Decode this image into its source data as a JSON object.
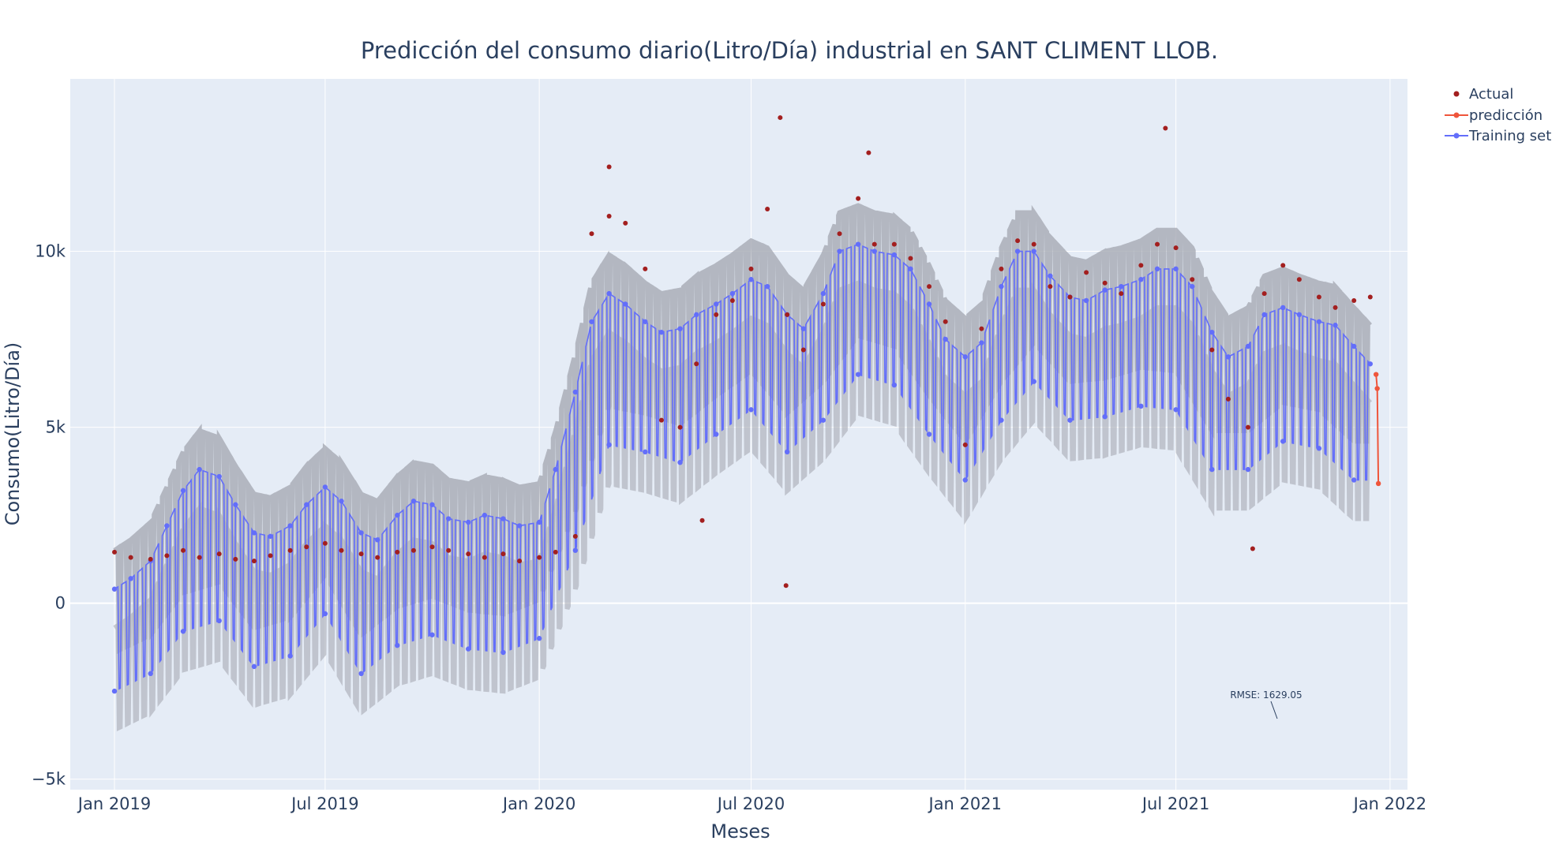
{
  "chart_data": {
    "type": "scatter",
    "title": "Predicción del consumo diario(Litro/Día) industrial en SANT CLIMENT LLOB.",
    "xlabel": "Meses",
    "ylabel": "Consumo(Litro/Día)",
    "x_range": [
      "2018-11-24",
      "2022-01-16"
    ],
    "y_range": [
      -5300,
      14900
    ],
    "x_ticks": [
      {
        "date": "2019-01-01",
        "label": "Jan 2019"
      },
      {
        "date": "2019-07-01",
        "label": "Jul 2019"
      },
      {
        "date": "2020-01-01",
        "label": "Jan 2020"
      },
      {
        "date": "2020-07-01",
        "label": "Jul 2020"
      },
      {
        "date": "2021-01-01",
        "label": "Jan 2021"
      },
      {
        "date": "2021-07-01",
        "label": "Jul 2021"
      },
      {
        "date": "2022-01-01",
        "label": "Jan 2022"
      }
    ],
    "y_ticks": [
      {
        "value": -5000,
        "label": "−5k"
      },
      {
        "value": 0,
        "label": "0"
      },
      {
        "value": 5000,
        "label": "5k"
      },
      {
        "value": 10000,
        "label": "10k"
      }
    ],
    "grid": true,
    "legend_position": "top-right",
    "series": [
      {
        "name": "Actual",
        "mode": "markers",
        "color": "#a31f1f",
        "points": [
          [
            "2019-01-01",
            1450
          ],
          [
            "2019-01-15",
            1300
          ],
          [
            "2019-02-01",
            1250
          ],
          [
            "2019-02-15",
            1350
          ],
          [
            "2019-03-01",
            1500
          ],
          [
            "2019-03-15",
            1300
          ],
          [
            "2019-04-01",
            1400
          ],
          [
            "2019-04-15",
            1250
          ],
          [
            "2019-05-01",
            1200
          ],
          [
            "2019-05-15",
            1350
          ],
          [
            "2019-06-01",
            1500
          ],
          [
            "2019-06-15",
            1600
          ],
          [
            "2019-07-01",
            1700
          ],
          [
            "2019-07-15",
            1500
          ],
          [
            "2019-08-01",
            1400
          ],
          [
            "2019-08-15",
            1300
          ],
          [
            "2019-09-01",
            1450
          ],
          [
            "2019-09-15",
            1500
          ],
          [
            "2019-10-01",
            1600
          ],
          [
            "2019-10-15",
            1500
          ],
          [
            "2019-11-01",
            1400
          ],
          [
            "2019-11-15",
            1300
          ],
          [
            "2019-12-01",
            1400
          ],
          [
            "2019-12-15",
            1200
          ],
          [
            "2020-01-01",
            1300
          ],
          [
            "2020-01-15",
            1450
          ],
          [
            "2020-02-01",
            1900
          ],
          [
            "2020-02-15",
            10500
          ],
          [
            "2020-03-01",
            11000
          ],
          [
            "2020-03-15",
            10800
          ],
          [
            "2020-04-01",
            9500
          ],
          [
            "2020-04-15",
            5200
          ],
          [
            "2020-05-01",
            5000
          ],
          [
            "2020-05-15",
            6800
          ],
          [
            "2020-06-01",
            8200
          ],
          [
            "2020-06-15",
            8600
          ],
          [
            "2020-07-01",
            9500
          ],
          [
            "2020-07-15",
            11200
          ],
          [
            "2020-08-01",
            8200
          ],
          [
            "2020-08-15",
            7200
          ],
          [
            "2020-09-01",
            8500
          ],
          [
            "2020-09-15",
            10500
          ],
          [
            "2020-10-01",
            11500
          ],
          [
            "2020-10-15",
            10200
          ],
          [
            "2020-11-01",
            10200
          ],
          [
            "2020-11-15",
            9800
          ],
          [
            "2020-12-01",
            9000
          ],
          [
            "2020-12-15",
            8000
          ],
          [
            "2021-01-01",
            4500
          ],
          [
            "2021-01-15",
            7800
          ],
          [
            "2021-02-01",
            9500
          ],
          [
            "2021-02-15",
            10300
          ],
          [
            "2021-03-01",
            10200
          ],
          [
            "2021-03-15",
            9000
          ],
          [
            "2021-04-01",
            8700
          ],
          [
            "2021-04-15",
            9400
          ],
          [
            "2021-05-01",
            9100
          ],
          [
            "2021-05-15",
            8800
          ],
          [
            "2021-06-01",
            9600
          ],
          [
            "2021-06-15",
            10200
          ],
          [
            "2021-07-01",
            10100
          ],
          [
            "2021-07-15",
            9200
          ],
          [
            "2021-08-01",
            7200
          ],
          [
            "2021-08-15",
            5800
          ],
          [
            "2021-09-01",
            5000
          ],
          [
            "2021-09-15",
            8800
          ],
          [
            "2021-10-01",
            9600
          ],
          [
            "2021-10-15",
            9200
          ],
          [
            "2021-11-01",
            8700
          ],
          [
            "2021-11-15",
            8400
          ],
          [
            "2021-12-01",
            8600
          ],
          [
            "2021-12-15",
            8700
          ],
          [
            "2020-07-26",
            13800
          ],
          [
            "2021-06-22",
            13500
          ],
          [
            "2020-10-10",
            12800
          ],
          [
            "2020-03-01",
            12400
          ],
          [
            "2020-07-31",
            500
          ],
          [
            "2021-09-05",
            1550
          ],
          [
            "2020-05-20",
            2350
          ]
        ]
      },
      {
        "name": "predicción",
        "mode": "lines+markers",
        "color": "#ef553b",
        "points": [
          [
            "2021-12-20",
            6500
          ],
          [
            "2021-12-21",
            6100
          ],
          [
            "2021-12-22",
            3400
          ]
        ]
      },
      {
        "name": "Training set",
        "mode": "lines+markers",
        "color": "#636efa",
        "points": [
          [
            "2019-01-01",
            400
          ],
          [
            "2019-01-15",
            700
          ],
          [
            "2019-02-01",
            1200
          ],
          [
            "2019-02-15",
            2200
          ],
          [
            "2019-03-01",
            3200
          ],
          [
            "2019-03-15",
            3800
          ],
          [
            "2019-04-01",
            3600
          ],
          [
            "2019-04-15",
            2800
          ],
          [
            "2019-05-01",
            2000
          ],
          [
            "2019-05-15",
            1900
          ],
          [
            "2019-06-01",
            2200
          ],
          [
            "2019-06-15",
            2800
          ],
          [
            "2019-07-01",
            3300
          ],
          [
            "2019-07-15",
            2900
          ],
          [
            "2019-08-01",
            2000
          ],
          [
            "2019-08-15",
            1800
          ],
          [
            "2019-09-01",
            2500
          ],
          [
            "2019-09-15",
            2900
          ],
          [
            "2019-10-01",
            2800
          ],
          [
            "2019-10-15",
            2400
          ],
          [
            "2019-11-01",
            2300
          ],
          [
            "2019-11-15",
            2500
          ],
          [
            "2019-12-01",
            2400
          ],
          [
            "2019-12-15",
            2200
          ],
          [
            "2020-01-01",
            2300
          ],
          [
            "2020-01-15",
            3800
          ],
          [
            "2020-02-01",
            6000
          ],
          [
            "2020-02-15",
            8000
          ],
          [
            "2020-03-01",
            8800
          ],
          [
            "2020-03-15",
            8500
          ],
          [
            "2020-04-01",
            8000
          ],
          [
            "2020-04-15",
            7700
          ],
          [
            "2020-05-01",
            7800
          ],
          [
            "2020-05-15",
            8200
          ],
          [
            "2020-06-01",
            8500
          ],
          [
            "2020-06-15",
            8800
          ],
          [
            "2020-07-01",
            9200
          ],
          [
            "2020-07-15",
            9000
          ],
          [
            "2020-08-01",
            8200
          ],
          [
            "2020-08-15",
            7800
          ],
          [
            "2020-09-01",
            8800
          ],
          [
            "2020-09-15",
            10000
          ],
          [
            "2020-10-01",
            10200
          ],
          [
            "2020-10-15",
            10000
          ],
          [
            "2020-11-01",
            9900
          ],
          [
            "2020-11-15",
            9500
          ],
          [
            "2020-12-01",
            8500
          ],
          [
            "2020-12-15",
            7500
          ],
          [
            "2021-01-01",
            7000
          ],
          [
            "2021-01-15",
            7400
          ],
          [
            "2021-02-01",
            9000
          ],
          [
            "2021-02-15",
            10000
          ],
          [
            "2021-03-01",
            10000
          ],
          [
            "2021-03-15",
            9300
          ],
          [
            "2021-04-01",
            8700
          ],
          [
            "2021-04-15",
            8600
          ],
          [
            "2021-05-01",
            8900
          ],
          [
            "2021-05-15",
            9000
          ],
          [
            "2021-06-01",
            9200
          ],
          [
            "2021-06-15",
            9500
          ],
          [
            "2021-07-01",
            9500
          ],
          [
            "2021-07-15",
            9000
          ],
          [
            "2021-08-01",
            7700
          ],
          [
            "2021-08-15",
            7000
          ],
          [
            "2021-09-01",
            7300
          ],
          [
            "2021-09-15",
            8200
          ],
          [
            "2021-10-01",
            8400
          ],
          [
            "2021-10-15",
            8200
          ],
          [
            "2021-11-01",
            8000
          ],
          [
            "2021-11-15",
            7900
          ],
          [
            "2021-12-01",
            7300
          ],
          [
            "2021-12-15",
            6800
          ]
        ],
        "weekly_low_points": [
          [
            "2019-01-01",
            -2500
          ],
          [
            "2019-02-01",
            -2000
          ],
          [
            "2019-03-01",
            -800
          ],
          [
            "2019-04-01",
            -500
          ],
          [
            "2019-05-01",
            -1800
          ],
          [
            "2019-06-01",
            -1500
          ],
          [
            "2019-07-01",
            -300
          ],
          [
            "2019-08-01",
            -2000
          ],
          [
            "2019-09-01",
            -1200
          ],
          [
            "2019-10-01",
            -900
          ],
          [
            "2019-11-01",
            -1300
          ],
          [
            "2019-12-01",
            -1400
          ],
          [
            "2020-01-01",
            -1000
          ],
          [
            "2020-02-01",
            1500
          ],
          [
            "2020-03-01",
            4500
          ],
          [
            "2020-04-01",
            4300
          ],
          [
            "2020-05-01",
            4000
          ],
          [
            "2020-06-01",
            4800
          ],
          [
            "2020-07-01",
            5500
          ],
          [
            "2020-08-01",
            4300
          ],
          [
            "2020-09-01",
            5200
          ],
          [
            "2020-10-01",
            6500
          ],
          [
            "2020-11-01",
            6200
          ],
          [
            "2020-12-01",
            4800
          ],
          [
            "2021-01-01",
            3500
          ],
          [
            "2021-02-01",
            5200
          ],
          [
            "2021-03-01",
            6300
          ],
          [
            "2021-04-01",
            5200
          ],
          [
            "2021-05-01",
            5300
          ],
          [
            "2021-06-01",
            5600
          ],
          [
            "2021-07-01",
            5500
          ],
          [
            "2021-08-01",
            3800
          ],
          [
            "2021-09-01",
            3800
          ],
          [
            "2021-10-01",
            4600
          ],
          [
            "2021-11-01",
            4400
          ],
          [
            "2021-12-01",
            3500
          ]
        ]
      }
    ],
    "uncertainty_band": {
      "color": "#a6aab4"
    },
    "annotations": [
      {
        "text": "RMSE: 1629.05",
        "x": "2021-10-15",
        "y": -2600
      }
    ]
  }
}
